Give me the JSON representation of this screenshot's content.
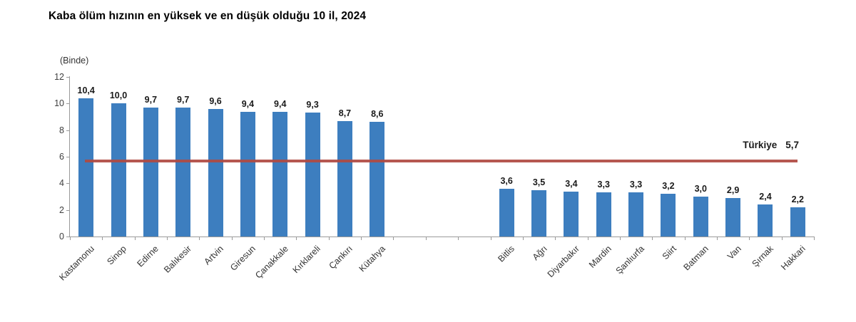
{
  "title": "Kaba ölüm hızının en yüksek ve en düşük olduğu 10 il, 2024",
  "unit_label": "(Binde)",
  "chart_data": {
    "type": "bar",
    "title": "Kaba ölüm hızının en yüksek ve en düşük olduğu 10 il, 2024",
    "ylabel": "(Binde)",
    "xlabel": "",
    "ylim": [
      0,
      12
    ],
    "yticks": [
      0,
      2,
      4,
      6,
      8,
      10,
      12
    ],
    "grid": "off",
    "bar_color": "#3d7ebf",
    "axis_color": "#9a9a9a",
    "groups": [
      {
        "categories": [
          "Kastamonu",
          "Sinop",
          "Edirne",
          "Balıkesir",
          "Artvin",
          "Giresun",
          "Çanakkale",
          "Kırklareli",
          "Çankırı",
          "Kütahya"
        ],
        "values": [
          10.4,
          10.0,
          9.7,
          9.7,
          9.6,
          9.4,
          9.4,
          9.3,
          8.7,
          8.6
        ],
        "value_labels": [
          "10,4",
          "10,0",
          "9,7",
          "9,7",
          "9,6",
          "9,4",
          "9,4",
          "9,3",
          "8,7",
          "8,6"
        ]
      },
      {
        "categories": [
          "Bitlis",
          "Ağrı",
          "Diyarbakır",
          "Mardin",
          "Şanlıurfa",
          "Siirt",
          "Batman",
          "Van",
          "Şırnak",
          "Hakkari"
        ],
        "values": [
          3.6,
          3.5,
          3.4,
          3.3,
          3.3,
          3.2,
          3.0,
          2.9,
          2.4,
          2.2
        ],
        "value_labels": [
          "3,6",
          "3,5",
          "3,4",
          "3,3",
          "3,3",
          "3,2",
          "3,0",
          "2,9",
          "2,4",
          "2,2"
        ]
      }
    ],
    "reference_line": {
      "label": "Türkiye",
      "value_label": "5,7",
      "value": 5.7,
      "color": "#b04a42"
    }
  }
}
